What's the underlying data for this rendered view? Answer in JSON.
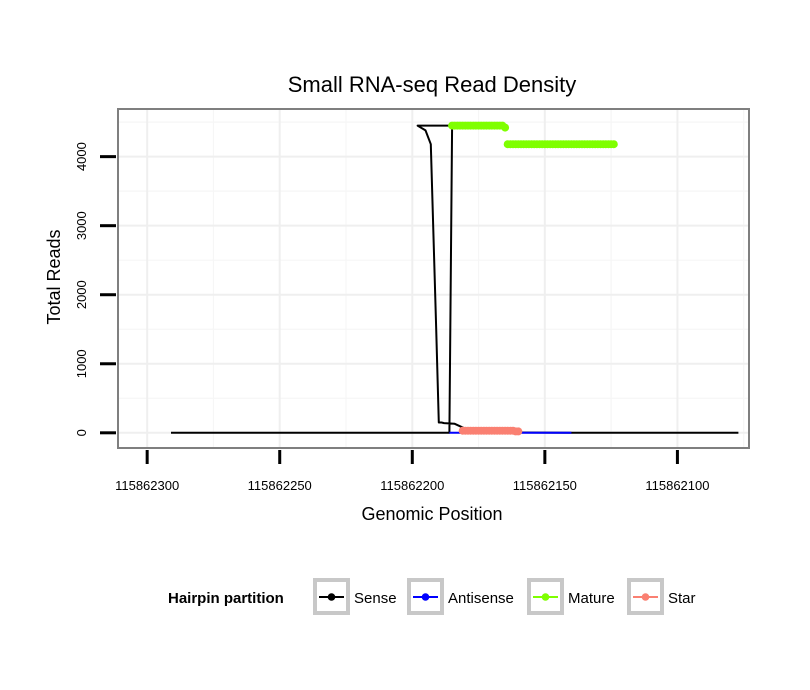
{
  "chart_data": {
    "type": "line",
    "title": "Small RNA-seq Read Density",
    "xlabel": "Genomic Position",
    "ylabel": "Total Reads",
    "xlim": [
      115862311,
      115862073
    ],
    "ylim": [
      -220,
      4690
    ],
    "x_ticks": [
      115862300,
      115862250,
      115862200,
      115862150,
      115862100
    ],
    "x_tick_labels": [
      "115862300",
      "115862250",
      "115862200",
      "115862150",
      "115862100"
    ],
    "y_ticks": [
      0,
      1000,
      2000,
      3000,
      4000
    ],
    "y_tick_labels": [
      "0",
      "1000",
      "2000",
      "3000",
      "4000"
    ],
    "grid": true,
    "legend": {
      "title": "Hairpin partition",
      "position": "bottom",
      "entries": [
        {
          "name": "Sense",
          "color": "#000000"
        },
        {
          "name": "Antisense",
          "color": "#0000ff"
        },
        {
          "name": "Mature",
          "color": "#7fff00"
        },
        {
          "name": "Star",
          "color": "#fa8072"
        }
      ]
    },
    "series": [
      {
        "name": "Sense",
        "color": "#000000",
        "style": "line",
        "x": [
          115862291,
          115862186,
          115862185,
          115862198,
          115862195,
          115862193,
          115862191,
          115862190,
          115862189,
          115862188,
          115862184,
          115862180,
          115862178,
          115862175,
          115862170,
          115862160,
          115862150,
          115862140,
          115862120,
          115862100,
          115862080,
          115862077
        ],
        "y": [
          0,
          0,
          4450,
          4450,
          4380,
          4180,
          1500,
          150,
          150,
          140,
          130,
          60,
          40,
          20,
          10,
          5,
          3,
          0,
          0,
          0,
          0,
          0
        ]
      },
      {
        "name": "Antisense",
        "color": "#0000ff",
        "style": "line",
        "x": [
          115862186,
          115862170,
          115862160,
          115862150,
          115862140
        ],
        "y": [
          0,
          0,
          0,
          0,
          0
        ]
      },
      {
        "name": "Mature",
        "color": "#7fff00",
        "style": "points",
        "x": [
          115862185,
          115862184,
          115862183,
          115862182,
          115862181,
          115862180,
          115862179,
          115862178,
          115862177,
          115862176,
          115862175,
          115862174,
          115862173,
          115862172,
          115862171,
          115862170,
          115862169,
          115862168,
          115862167,
          115862166,
          115862165,
          115862164,
          115862163,
          115862162,
          115862161,
          115862160,
          115862159,
          115862158,
          115862157,
          115862156,
          115862155,
          115862154,
          115862153,
          115862152,
          115862151,
          115862150,
          115862149,
          115862148,
          115862147,
          115862146,
          115862145,
          115862144,
          115862143,
          115862142,
          115862141,
          115862140,
          115862139,
          115862138,
          115862137,
          115862136,
          115862135,
          115862134,
          115862133,
          115862132,
          115862131,
          115862130,
          115862129,
          115862128,
          115862127,
          115862126,
          115862125,
          115862124
        ],
        "y": [
          4450,
          4450,
          4450,
          4450,
          4450,
          4450,
          4450,
          4450,
          4450,
          4450,
          4450,
          4450,
          4450,
          4450,
          4450,
          4450,
          4450,
          4450,
          4450,
          4450,
          4420,
          4180,
          4180,
          4180,
          4180,
          4180,
          4180,
          4180,
          4180,
          4180,
          4180,
          4180,
          4180,
          4180,
          4180,
          4180,
          4180,
          4180,
          4180,
          4180,
          4180,
          4180,
          4180,
          4180,
          4180,
          4180,
          4180,
          4180,
          4180,
          4180,
          4180,
          4180,
          4180,
          4180,
          4180,
          4180,
          4180,
          4180,
          4180,
          4180,
          4180,
          4180
        ]
      },
      {
        "name": "Star",
        "color": "#fa8072",
        "style": "points",
        "x": [
          115862181,
          115862180,
          115862179,
          115862178,
          115862177,
          115862176,
          115862175,
          115862174,
          115862173,
          115862172,
          115862171,
          115862170,
          115862169,
          115862168,
          115862167,
          115862166,
          115862165,
          115862164,
          115862163,
          115862162,
          115862161,
          115862160
        ],
        "y": [
          30,
          30,
          30,
          30,
          30,
          30,
          30,
          30,
          30,
          30,
          30,
          30,
          30,
          30,
          30,
          30,
          30,
          30,
          30,
          30,
          20,
          20
        ]
      }
    ]
  }
}
